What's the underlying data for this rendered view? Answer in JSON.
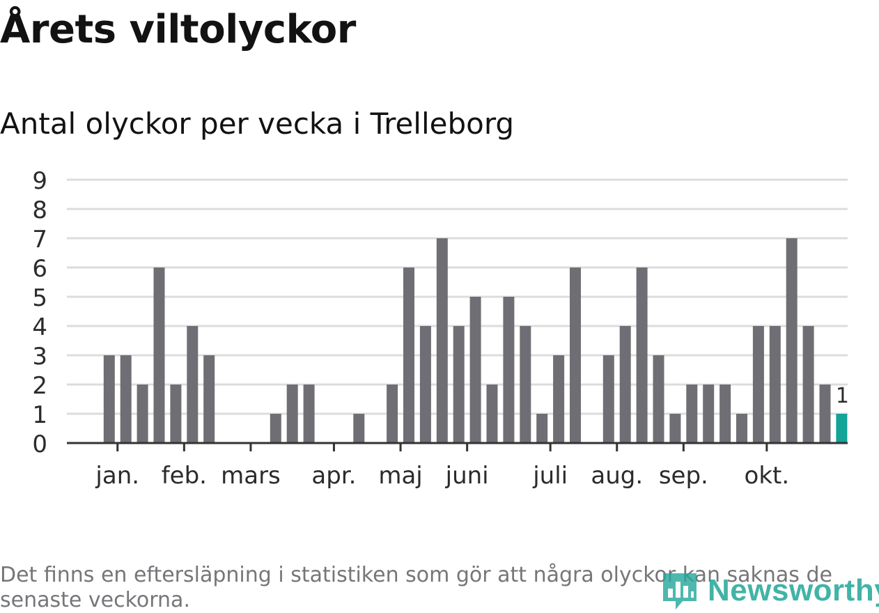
{
  "chart_data": {
    "type": "bar",
    "title": "Årets viltolyckor",
    "subtitle": "Antal olyckor per vecka i Trelleborg",
    "ylim": [
      0,
      9
    ],
    "yticks": [
      0,
      1,
      2,
      3,
      4,
      5,
      6,
      7,
      8,
      9
    ],
    "weeks": [
      1,
      2,
      3,
      4,
      5,
      6,
      7,
      8,
      9,
      10,
      11,
      12,
      13,
      14,
      15,
      16,
      17,
      18,
      19,
      20,
      21,
      22,
      23,
      24,
      25,
      26,
      27,
      28,
      29,
      30,
      31,
      32,
      33,
      34,
      35,
      36,
      37,
      38,
      39,
      40,
      41,
      42,
      43,
      44,
      45,
      46,
      47
    ],
    "values": [
      0,
      0,
      3,
      3,
      2,
      6,
      2,
      4,
      3,
      0,
      0,
      0,
      1,
      2,
      2,
      0,
      0,
      1,
      0,
      2,
      6,
      4,
      7,
      4,
      5,
      2,
      5,
      4,
      1,
      3,
      6,
      0,
      3,
      4,
      6,
      3,
      1,
      2,
      2,
      2,
      1,
      4,
      4,
      7,
      4,
      2,
      1
    ],
    "highlight_index": 46,
    "highlight_label": "1",
    "month_labels": [
      {
        "label": "jan.",
        "week": 3.5
      },
      {
        "label": "feb.",
        "week": 7.5
      },
      {
        "label": "mars",
        "week": 11.5
      },
      {
        "label": "apr.",
        "week": 16.5
      },
      {
        "label": "maj",
        "week": 20.5
      },
      {
        "label": "juni",
        "week": 24.5
      },
      {
        "label": "juli",
        "week": 29.5
      },
      {
        "label": "aug.",
        "week": 33.5
      },
      {
        "label": "sep.",
        "week": 37.5
      },
      {
        "label": "okt.",
        "week": 42.5
      }
    ],
    "colors": {
      "bar": "#6f6e74",
      "highlight": "#13a397",
      "grid": "#dcdcdc",
      "axis": "#333333",
      "text": "#2b2b2b"
    }
  },
  "note": "Det finns en eftersläpning i statistiken som gör att några olyckor kan saknas de senaste veckorna.",
  "logo": {
    "text": "Newsworthy",
    "icon": "bar-chart-speech-icon",
    "color": "#23a79a"
  }
}
